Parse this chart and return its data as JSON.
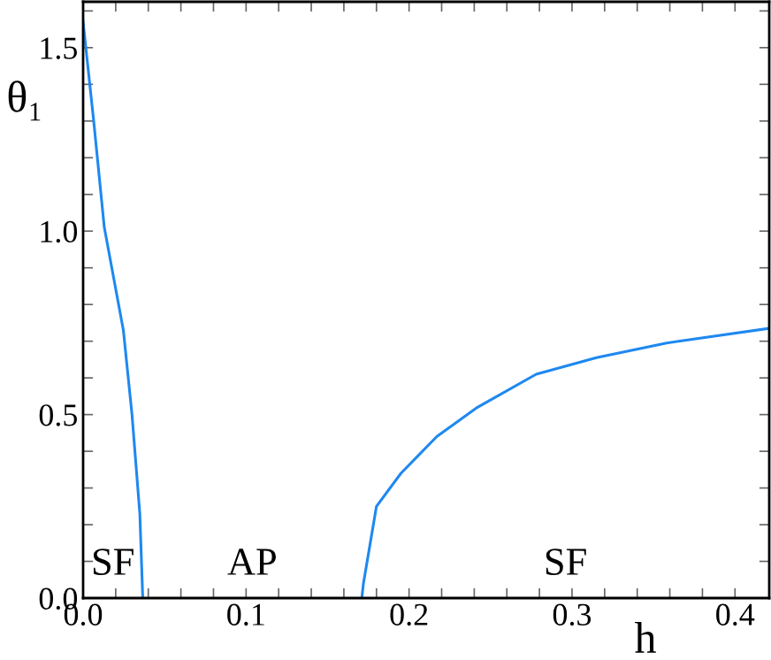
{
  "chart_data": {
    "type": "line",
    "xlabel": "h",
    "ylabel": "θ₁",
    "series": [
      {
        "color": "#1e88f0",
        "x": [
          0,
          0.0065,
          0.013,
          0.0247,
          0.03,
          0.0348,
          0.0366
        ],
        "values": [
          1.57,
          1.3,
          1.01,
          0.73,
          0.5,
          0.23,
          0
        ]
      },
      {
        "color": "#1e88f0",
        "x": [
          0.171,
          0.172,
          0.18,
          0.195,
          0.217,
          0.242,
          0.278,
          0.315,
          0.358,
          0.421
        ],
        "values": [
          0,
          0.04,
          0.25,
          0.34,
          0.44,
          0.52,
          0.61,
          0.655,
          0.695,
          0.735
        ]
      }
    ],
    "xlim": [
      0,
      0.421
    ],
    "ylim": [
      0,
      1.625
    ],
    "xticks": [
      {
        "value": 0,
        "label": "0.0"
      },
      {
        "value": 0.02,
        "label": null
      },
      {
        "value": 0.04,
        "label": null
      },
      {
        "value": 0.06,
        "label": null
      },
      {
        "value": 0.08,
        "label": null
      },
      0.1,
      {
        "value": 0.12,
        "label": null
      },
      {
        "value": 0.14,
        "label": null
      },
      {
        "value": 0.16,
        "label": null
      },
      {
        "value": 0.18,
        "label": null
      },
      0.2,
      {
        "value": 0.22,
        "label": null
      },
      {
        "value": 0.24,
        "label": null
      },
      {
        "value": 0.26,
        "label": null
      },
      {
        "value": 0.28,
        "label": null
      },
      0.3,
      {
        "value": 0.32,
        "label": null
      },
      {
        "value": 0.34,
        "label": null
      },
      {
        "value": 0.36,
        "label": null
      },
      {
        "value": 0.38,
        "label": null
      },
      0.4
    ],
    "yticks": [
      {
        "value": 0,
        "label": "0.0"
      },
      {
        "value": 0.1,
        "label": null
      },
      {
        "value": 0.2,
        "label": null
      },
      {
        "value": 0.3,
        "label": null
      },
      {
        "value": 0.4,
        "label": null
      },
      0.5,
      {
        "value": 0.6,
        "label": null
      },
      {
        "value": 0.7,
        "label": null
      },
      {
        "value": 0.8,
        "label": null
      },
      {
        "value": 0.9,
        "label": null
      },
      {
        "value": 1.0,
        "label": "1.0"
      },
      {
        "value": 1.1,
        "label": null
      },
      {
        "value": 1.2,
        "label": null
      },
      {
        "value": 1.3,
        "label": null
      },
      {
        "value": 1.4,
        "label": null
      },
      1.5,
      {
        "value": 1.6,
        "label": null
      }
    ],
    "annotations": [
      "SF",
      "AP",
      "SF"
    ],
    "grid": false,
    "legend": false,
    "marker": "none",
    "line_style": "solid"
  }
}
